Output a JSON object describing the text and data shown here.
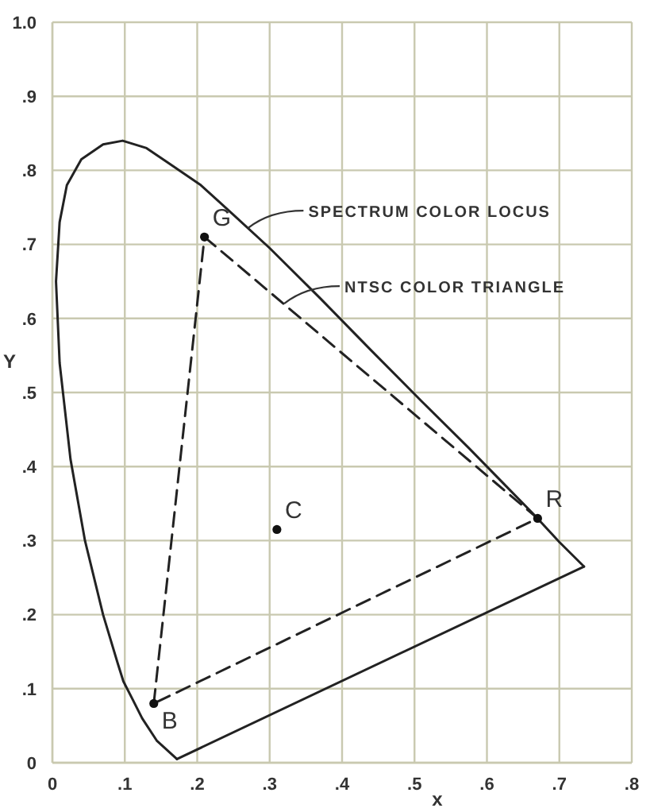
{
  "chart_data": {
    "type": "line",
    "xlabel": "x",
    "ylabel": "Y",
    "xlim": [
      0,
      0.8
    ],
    "ylim": [
      0,
      1.0
    ],
    "xticks": [
      0,
      {
        "value": 0.1,
        "label": ".1"
      },
      {
        "value": 0.2,
        "label": ".2"
      },
      {
        "value": 0.3,
        "label": ".3"
      },
      {
        "value": 0.4,
        "label": ".4"
      },
      {
        "value": 0.5,
        "label": ".5"
      },
      {
        "value": 0.6,
        "label": ".6"
      },
      {
        "value": 0.7,
        "label": ".7"
      },
      {
        "value": 0.8,
        "label": ".8"
      }
    ],
    "yticks": [
      0,
      {
        "value": 0.1,
        "label": ".1"
      },
      {
        "value": 0.2,
        "label": ".2"
      },
      {
        "value": 0.3,
        "label": ".3"
      },
      {
        "value": 0.4,
        "label": ".4"
      },
      {
        "value": 0.5,
        "label": ".5"
      },
      {
        "value": 0.6,
        "label": ".6"
      },
      {
        "value": 0.7,
        "label": ".7"
      },
      {
        "value": 0.8,
        "label": ".8"
      },
      {
        "value": 0.9,
        "label": ".9"
      },
      {
        "value": 1.0,
        "label": "1.0"
      }
    ],
    "grid": true,
    "series": [
      {
        "type": "line",
        "color": "#222222",
        "line_style": "solid",
        "x": [
          0.172,
          0.144,
          0.124,
          0.11,
          0.098,
          0.09,
          0.07,
          0.045,
          0.025,
          0.01,
          0.005,
          0.01,
          0.02,
          0.04,
          0.07,
          0.097,
          0.13,
          0.16,
          0.205,
          0.25,
          0.3,
          0.37,
          0.44,
          0.51,
          0.575,
          0.627,
          0.665,
          0.7,
          0.734
        ],
        "values": [
          0.005,
          0.03,
          0.06,
          0.087,
          0.11,
          0.135,
          0.2,
          0.3,
          0.41,
          0.54,
          0.65,
          0.73,
          0.78,
          0.815,
          0.835,
          0.84,
          0.83,
          0.81,
          0.78,
          0.74,
          0.695,
          0.627,
          0.557,
          0.488,
          0.425,
          0.373,
          0.335,
          0.298,
          0.265
        ]
      },
      {
        "color": "#222222",
        "line_style": "solid",
        "x": [
          0.172,
          0.734
        ],
        "values": [
          0.005,
          0.265
        ]
      },
      {
        "color": "#222222",
        "line_style": "dashed",
        "x": [
          0.21,
          0.67,
          0.14
        ],
        "values": [
          0.71,
          0.33,
          0.08
        ]
      },
      {
        "color": "#222222",
        "line_style": "dashed",
        "x": [
          0.14,
          0.21
        ],
        "values": [
          0.08,
          0.71
        ]
      },
      {
        "type": "scatter",
        "color": "#111111",
        "marker": "circle",
        "x": [
          0.21,
          0.67,
          0.14,
          0.31
        ],
        "values": [
          0.71,
          0.33,
          0.08,
          0.315
        ]
      }
    ],
    "annotations": [
      {
        "text": "SPECTRUM COLOR LOCUS",
        "x": 0.27,
        "y": 0.722
      },
      {
        "text": "NTSC COLOR TRIANGLE",
        "x": 0.32,
        "y": 0.62
      },
      {
        "text": "G",
        "x": 0.21,
        "y": 0.71
      },
      {
        "text": "R",
        "x": 0.67,
        "y": 0.33
      },
      {
        "text": "B",
        "x": 0.14,
        "y": 0.08
      },
      {
        "text": "C",
        "x": 0.31,
        "y": 0.315
      }
    ]
  }
}
